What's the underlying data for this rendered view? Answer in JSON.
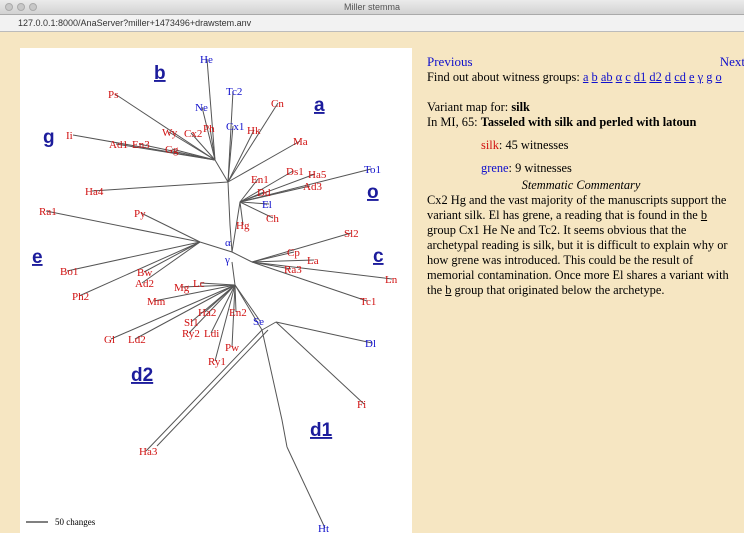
{
  "window": {
    "title": "Miller stemma",
    "url": "127.0.0.1:8000/AnaServer?miller+1473496+drawstem.anv"
  },
  "stemma": {
    "nodes": [
      {
        "label": "He",
        "color": "blue"
      },
      {
        "label": "Tc2",
        "color": "blue"
      },
      {
        "label": "Ne",
        "color": "blue"
      },
      {
        "label": "Ps",
        "color": "red"
      },
      {
        "label": "Cn",
        "color": "red"
      },
      {
        "label": "Wy",
        "color": "red"
      },
      {
        "label": "Cx2",
        "color": "red"
      },
      {
        "label": "Ph",
        "color": "red"
      },
      {
        "label": "Cx1",
        "color": "blue"
      },
      {
        "label": "Hk",
        "color": "red"
      },
      {
        "label": "Ma",
        "color": "red"
      },
      {
        "label": "Gg",
        "color": "red"
      },
      {
        "label": "Ad1",
        "color": "red"
      },
      {
        "label": "En3",
        "color": "red"
      },
      {
        "label": "Ii",
        "color": "red"
      },
      {
        "label": "Ds1",
        "color": "red"
      },
      {
        "label": "Ha5",
        "color": "red"
      },
      {
        "label": "En1",
        "color": "red"
      },
      {
        "label": "To1",
        "color": "blue"
      },
      {
        "label": "Ad3",
        "color": "red"
      },
      {
        "label": "Dd",
        "color": "red"
      },
      {
        "label": "Ha4",
        "color": "red"
      },
      {
        "label": "El",
        "color": "blue"
      },
      {
        "label": "Ch",
        "color": "red"
      },
      {
        "label": "Hg",
        "color": "red"
      },
      {
        "label": "Ra1",
        "color": "red"
      },
      {
        "label": "Py",
        "color": "red"
      },
      {
        "label": "Sl2",
        "color": "red"
      },
      {
        "label": "α",
        "color": "blue"
      },
      {
        "label": "γ",
        "color": "blue"
      },
      {
        "label": "Cp",
        "color": "red"
      },
      {
        "label": "La",
        "color": "red"
      },
      {
        "label": "Ra3",
        "color": "red"
      },
      {
        "label": "Ln",
        "color": "red"
      },
      {
        "label": "Bw",
        "color": "red"
      },
      {
        "label": "Ad2",
        "color": "red"
      },
      {
        "label": "Mg",
        "color": "red"
      },
      {
        "label": "Lc",
        "color": "red"
      },
      {
        "label": "Bo1",
        "color": "red"
      },
      {
        "label": "Ph2",
        "color": "red"
      },
      {
        "label": "Mm",
        "color": "red"
      },
      {
        "label": "Tc1",
        "color": "red"
      },
      {
        "label": "Ha2",
        "color": "red"
      },
      {
        "label": "En2",
        "color": "red"
      },
      {
        "label": "Sl1",
        "color": "red"
      },
      {
        "label": "Ldi",
        "color": "red"
      },
      {
        "label": "Ry2",
        "color": "red"
      },
      {
        "label": "Se",
        "color": "blue"
      },
      {
        "label": "Gl",
        "color": "red"
      },
      {
        "label": "Ld2",
        "color": "red"
      },
      {
        "label": "Pw",
        "color": "red"
      },
      {
        "label": "Dl",
        "color": "blue"
      },
      {
        "label": "Ry1",
        "color": "red"
      },
      {
        "label": "Fi",
        "color": "red"
      },
      {
        "label": "Ha3",
        "color": "red"
      },
      {
        "label": "Ht",
        "color": "blue"
      }
    ],
    "groups": [
      "b",
      "a",
      "g",
      "o",
      "e",
      "c",
      "d2",
      "d1"
    ],
    "scale": "50 changes"
  },
  "nav": {
    "previous": "Previous",
    "next": "Next"
  },
  "groups_intro": "Find out about witness groups:",
  "group_links": [
    "a",
    "b",
    "ab",
    "α",
    "c",
    "d1",
    "d2",
    "d",
    "cd",
    "e",
    "γ",
    "g",
    "o"
  ],
  "variant": {
    "label": "Variant map for:",
    "word": "silk",
    "line_ref": "In MI, 65:",
    "line_text": "Tasseled with silk and perled with latoun"
  },
  "readings": [
    {
      "word": "silk",
      "count": ": 45 witnesses"
    },
    {
      "word": "grene",
      "count": ": 9 witnesses"
    }
  ],
  "commentary": {
    "heading": "Stemmatic Commentary",
    "parts": [
      "Cx2 Hg and the vast majority of the manuscripts support the variant silk. El has grene, a reading that is found in the ",
      "b",
      " group Cx1 He Ne and Tc2. It seems obvious that the archetypal reading is silk, but it is difficult to explain why or how grene was introduced. This could be the result of memorial contamination. Once more El shares a variant with the ",
      "b",
      " group that originated below the archetype."
    ]
  }
}
